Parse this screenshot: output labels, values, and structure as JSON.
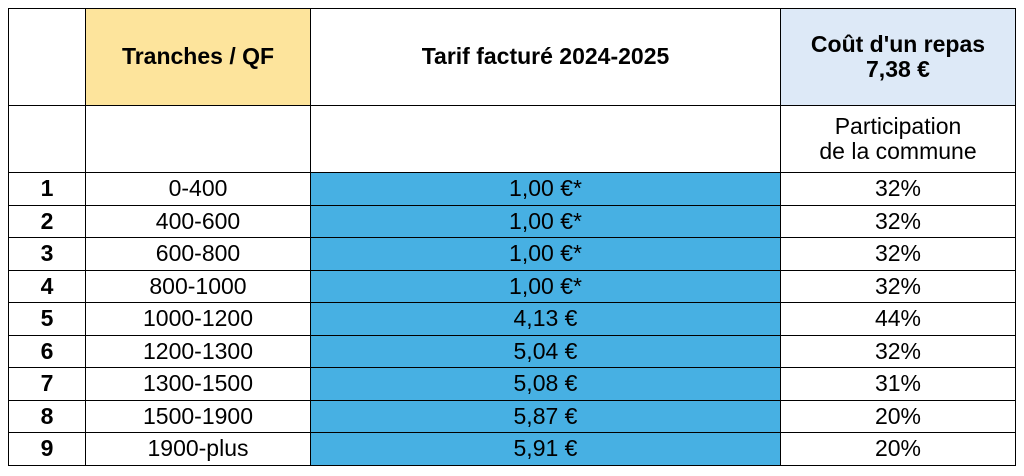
{
  "header": {
    "index": "",
    "band": "Tranches / QF",
    "price": "Tarif facturé 2024-2025",
    "cost_line1": "Coût d'un repas",
    "cost_line2": "7,38 €"
  },
  "subheader": {
    "index": "",
    "band": "",
    "price": "",
    "participation_line1": "Participation",
    "participation_line2": "de la commune"
  },
  "rows": [
    {
      "index": "1",
      "band": "0-400",
      "price": "1,00 €*",
      "participation": "32%"
    },
    {
      "index": "2",
      "band": "400-600",
      "price": "1,00 €*",
      "participation": "32%"
    },
    {
      "index": "3",
      "band": "600-800",
      "price": "1,00 €*",
      "participation": "32%"
    },
    {
      "index": "4",
      "band": "800-1000",
      "price": "1,00 €*",
      "participation": "32%"
    },
    {
      "index": "5",
      "band": "1000-1200",
      "price": "4,13 €",
      "participation": "44%"
    },
    {
      "index": "6",
      "band": "1200-1300",
      "price": "5,04 €",
      "participation": "32%"
    },
    {
      "index": "7",
      "band": "1300-1500",
      "price": "5,08 €",
      "participation": "31%"
    },
    {
      "index": "8",
      "band": "1500-1900",
      "price": "5,87 €",
      "participation": "20%"
    },
    {
      "index": "9",
      "band": "1900-plus",
      "price": "5,91 €",
      "participation": "20%"
    }
  ],
  "colors": {
    "band_header": "#fde49c",
    "cost_header": "#dde9f7",
    "price_column": "#47b0e3",
    "border": "#000000"
  }
}
